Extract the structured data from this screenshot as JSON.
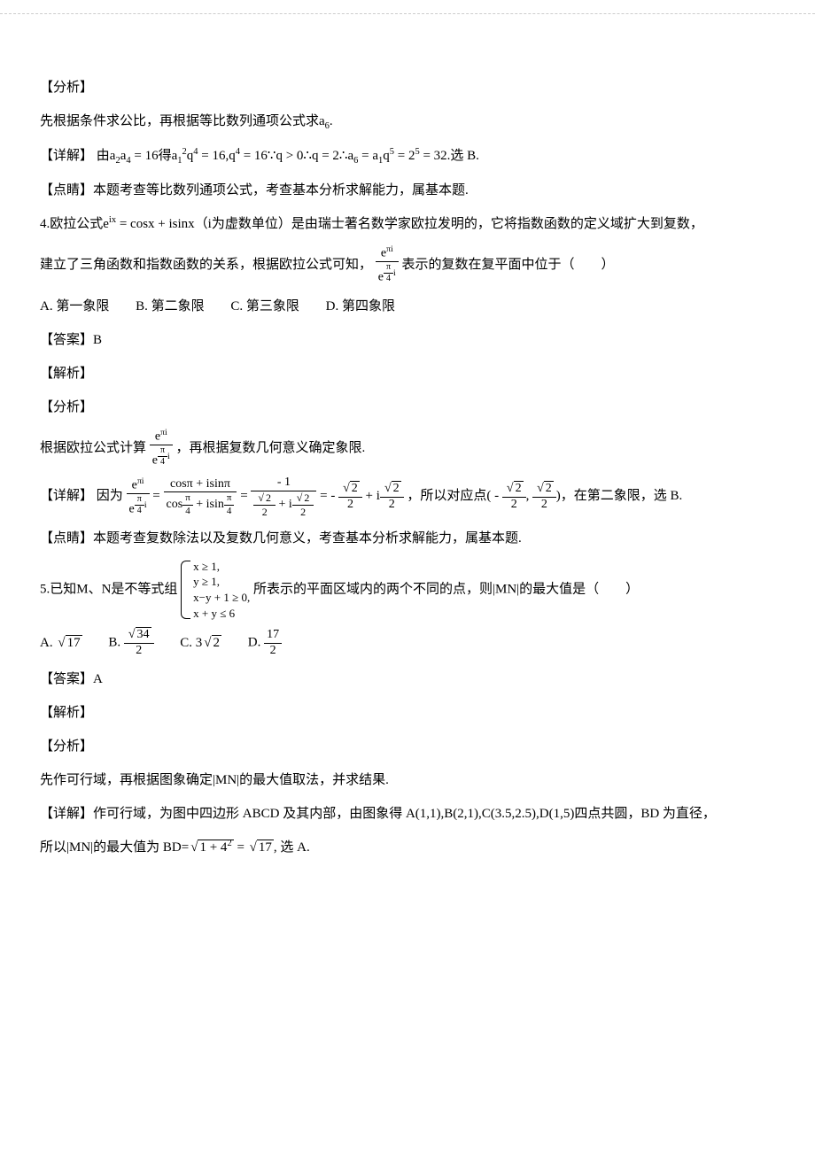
{
  "analysis_heading": "【分析】",
  "detail_heading": "【详解】",
  "comment_heading": "【点睛】",
  "answer_heading": "【答案】",
  "explain_heading": "【解析】",
  "q3": {
    "analysis": "先根据条件求公比，再根据等比数列通项公式求a",
    "analysis_sub": "6",
    "analysis_end": ".",
    "detail_prefix": "由a",
    "detail_1": "a",
    "detail_2": " = 16得a",
    "detail_3": "q",
    "detail_4": " = 16,q",
    "detail_5": " = 16∵q > 0∴q = 2∴a",
    "detail_6": " = a",
    "detail_7": "q",
    "detail_8": " = 2",
    "detail_9": " = 32.选 B.",
    "comment": "本题考查等比数列通项公式，考查基本分析求解能力，属基本题."
  },
  "q4": {
    "num": "4.",
    "stem1": "欧拉公式e",
    "stem1b": " = cosx + isinx（i为虚数单位）是由瑞士著名数学家欧拉发明的，它将指数函数的定义域扩大到复数，",
    "stem2a": "建立了三角函数和指数函数的关系，根据欧拉公式可知，",
    "stem2b": "表示的复数在复平面中位于（　　）",
    "frac_num": "e",
    "frac_num_exp": "πi",
    "frac_den": "e",
    "frac_den_exp_num": "π",
    "frac_den_exp_den": "4",
    "frac_den_exp_i": "i",
    "optA": "A. 第一象限",
    "optB": "B. 第二象限",
    "optC": "C. 第三象限",
    "optD": "D. 第四象限",
    "answer": "B",
    "analysis_a": "根据欧拉公式计算",
    "analysis_b": "，再根据复数几何意义确定象限.",
    "detail_a": "因为",
    "detail_mid": " = ",
    "cos_num": "cosπ + isinπ",
    "cos_den_a": "cos",
    "cos_den_b": " + isin",
    "pi4_num": "π",
    "pi4_den": "4",
    "neg1": " - 1",
    "sq2": "2",
    "half2": "2",
    "plus_i": " + i",
    "minus": " - ",
    "detail_tail": "，所以对应点( - ",
    "detail_tail2": ", ",
    "detail_tail3": ")，在第二象限，选 B.",
    "comment": "本题考查复数除法以及复数几何意义，考查基本分析求解能力，属基本题."
  },
  "q5": {
    "num": "5.",
    "stem_a": "已知M、N是不等式组",
    "c1": "x ≥ 1,",
    "c2": "y ≥ 1,",
    "c3": "x−y + 1 ≥ 0,",
    "c4": "x + y ≤ 6",
    "stem_b": " 所表示的平面区域内的两个不同的点，则|MN|的最大值是（　　）",
    "optA_pre": "A. ",
    "optA_rad": "17",
    "optB_pre": "B. ",
    "optB_rad": "34",
    "optB_den": "2",
    "optC_pre": "C. 3",
    "optC_rad": "2",
    "optD_pre": "D. ",
    "optD_num": "17",
    "optD_den": "2",
    "answer": "A",
    "analysis": "先作可行域，再根据图象确定|MN|的最大值取法，并求结果.",
    "detail_a": "作可行域，为图中四边形 ABCD 及其内部，由图象得 A(1,1),B(2,1),C(3.5,2.5),D(1,5)四点共圆，BD 为直径，",
    "detail_b": "所以|MN|的最大值为 BD=",
    "detail_rad": "1 + 4",
    "detail_exp": "2",
    "detail_eq": " = ",
    "detail_rad2": "17",
    "detail_end": ", 选 A."
  }
}
